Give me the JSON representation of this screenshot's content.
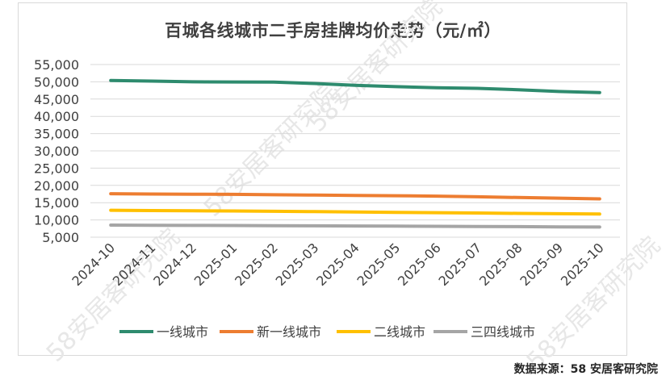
{
  "chart_data": {
    "type": "line",
    "title": "百城各线城市二手房挂牌均价走势（元/㎡）",
    "categories": [
      "2024-10",
      "2024-11",
      "2024-12",
      "2025-01",
      "2025-02",
      "2025-03",
      "2025-04",
      "2025-05",
      "2025-06",
      "2025-07",
      "2025-08",
      "2025-09",
      "2025-10"
    ],
    "ylim": [
      5000,
      55000
    ],
    "yticks": [
      "5,000",
      "10,000",
      "15,000",
      "20,000",
      "25,000",
      "30,000",
      "35,000",
      "40,000",
      "45,000",
      "50,000",
      "55,000"
    ],
    "ytick_values": [
      5000,
      10000,
      15000,
      20000,
      25000,
      30000,
      35000,
      40000,
      45000,
      50000,
      55000
    ],
    "grid": true,
    "legend_position": "bottom",
    "series": [
      {
        "name": "一线城市",
        "color": "#2e8b6e",
        "values": [
          50400,
          50200,
          50000,
          49950,
          49900,
          49500,
          49000,
          48600,
          48300,
          48100,
          47700,
          47200,
          46900
        ]
      },
      {
        "name": "新一线城市",
        "color": "#ed7d31",
        "values": [
          17600,
          17500,
          17450,
          17400,
          17300,
          17200,
          17100,
          17000,
          16900,
          16700,
          16500,
          16300,
          16100
        ]
      },
      {
        "name": "二线城市",
        "color": "#ffc000",
        "values": [
          12800,
          12700,
          12650,
          12600,
          12500,
          12400,
          12300,
          12200,
          12100,
          12000,
          11900,
          11800,
          11700
        ]
      },
      {
        "name": "三四线城市",
        "color": "#a5a5a5",
        "values": [
          8500,
          8450,
          8400,
          8380,
          8350,
          8300,
          8250,
          8200,
          8150,
          8100,
          8050,
          8000,
          7950
        ]
      }
    ]
  },
  "source": "数据来源：58 安居客研究院",
  "watermark": "58安居客研究院"
}
